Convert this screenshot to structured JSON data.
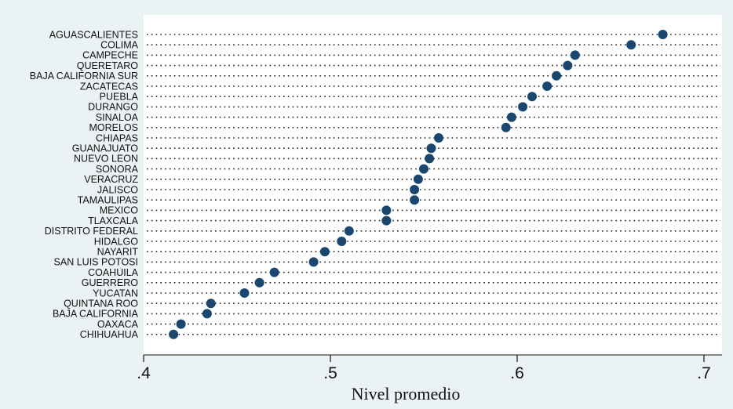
{
  "colors": {
    "outer_background": "#eaf2f3",
    "plot_background": "#ffffff",
    "marker": "#1a476f",
    "guide_line": "#222222",
    "text": "#111111"
  },
  "chart_data": {
    "type": "scatter",
    "orientation": "horizontal dot plot",
    "title": "",
    "xlabel": "Nivel promedio",
    "ylabel": "",
    "xlim": [
      0.4,
      0.71
    ],
    "xticks": [
      0.4,
      0.5,
      0.6,
      0.7
    ],
    "xtick_labels": [
      ".4",
      ".5",
      ".6",
      ".7"
    ],
    "grid": false,
    "legend": "none",
    "categories": [
      "AGUASCALIENTES",
      "COLIMA",
      "CAMPECHE",
      "QUERETARO",
      "BAJA CALIFORNIA SUR",
      "ZACATECAS",
      "PUEBLA",
      "DURANGO",
      "SINALOA",
      "MORELOS",
      "CHIAPAS",
      "GUANAJUATO",
      "NUEVO LEON",
      "SONORA",
      "VERACRUZ",
      "JALISCO",
      "TAMAULIPAS",
      "MEXICO",
      "TLAXCALA",
      "DISTRITO FEDERAL",
      "HIDALGO",
      "NAYARIT",
      "SAN LUIS POTOSI",
      "COAHUILA",
      "GUERRERO",
      "YUCATAN",
      "QUINTANA ROO",
      "BAJA CALIFORNIA",
      "OAXACA",
      "CHIHUAHUA"
    ],
    "values": [
      0.678,
      0.661,
      0.631,
      0.627,
      0.621,
      0.616,
      0.608,
      0.603,
      0.597,
      0.594,
      0.558,
      0.554,
      0.553,
      0.55,
      0.547,
      0.545,
      0.545,
      0.53,
      0.53,
      0.51,
      0.506,
      0.497,
      0.491,
      0.47,
      0.462,
      0.454,
      0.436,
      0.434,
      0.42,
      0.416
    ]
  }
}
